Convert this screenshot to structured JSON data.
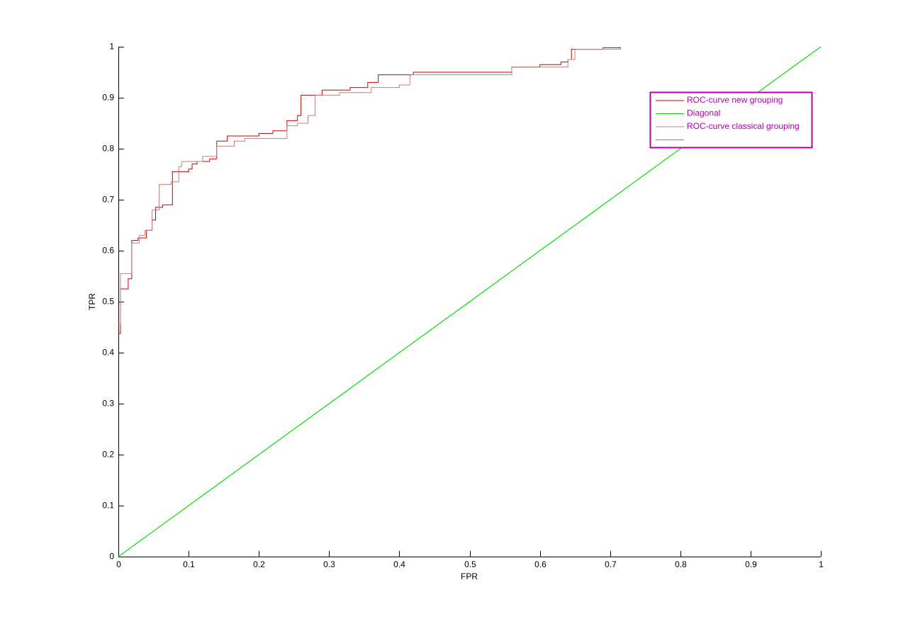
{
  "chart_data": {
    "type": "line",
    "xlabel": "FPR",
    "ylabel": "TPR",
    "xlim": [
      0,
      1
    ],
    "ylim": [
      0,
      1
    ],
    "xticks": [
      0,
      0.1,
      0.2,
      0.3,
      0.4,
      0.5,
      0.6,
      0.7,
      0.8,
      0.9,
      1
    ],
    "yticks": [
      0,
      0.1,
      0.2,
      0.3,
      0.4,
      0.5,
      0.6,
      0.7,
      0.8,
      0.9,
      1
    ],
    "legend_position": "northeast",
    "legend_color": "#b000b0",
    "series": [
      {
        "name": "ROC-curve new grouping",
        "color": "#cc0000",
        "x": [
          0,
          0.003,
          0.003,
          0.014,
          0.014,
          0.019,
          0.019,
          0.028,
          0.028,
          0.04,
          0.04,
          0.048,
          0.048,
          0.053,
          0.053,
          0.063,
          0.063,
          0.077,
          0.077,
          0.1,
          0.1,
          0.105,
          0.105,
          0.112,
          0.112,
          0.13,
          0.13,
          0.14,
          0.14,
          0.155,
          0.155,
          0.2,
          0.2,
          0.22,
          0.22,
          0.24,
          0.24,
          0.255,
          0.255,
          0.26,
          0.26,
          0.29,
          0.29,
          0.33,
          0.33,
          0.355,
          0.355,
          0.37,
          0.37,
          0.42,
          0.42,
          0.56,
          0.56,
          0.6,
          0.6,
          0.63,
          0.63,
          0.64,
          0.64,
          0.645,
          0.645,
          0.69,
          0.69,
          0.715,
          0.715
        ],
        "values": [
          0.4375,
          0.4375,
          0.525,
          0.525,
          0.545,
          0.545,
          0.62,
          0.62,
          0.625,
          0.625,
          0.64,
          0.64,
          0.66,
          0.66,
          0.685,
          0.685,
          0.69,
          0.69,
          0.755,
          0.755,
          0.76,
          0.76,
          0.77,
          0.77,
          0.775,
          0.775,
          0.78,
          0.78,
          0.815,
          0.815,
          0.825,
          0.825,
          0.83,
          0.83,
          0.835,
          0.835,
          0.855,
          0.855,
          0.865,
          0.865,
          0.905,
          0.905,
          0.915,
          0.915,
          0.92,
          0.92,
          0.93,
          0.93,
          0.945,
          0.945,
          0.95,
          0.95,
          0.96,
          0.96,
          0.965,
          0.965,
          0.97,
          0.97,
          0.975,
          0.975,
          0.995,
          0.995,
          0.998,
          0.998,
          1
        ]
      },
      {
        "name": "Diagonal",
        "color": "#00dd00",
        "x": [
          0,
          1
        ],
        "values": [
          0,
          1
        ]
      },
      {
        "name": "ROC-curve classical grouping",
        "color": "#c08080",
        "x": [
          0,
          0.003,
          0.003,
          0.019,
          0.019,
          0.03,
          0.03,
          0.038,
          0.038,
          0.048,
          0.048,
          0.058,
          0.058,
          0.075,
          0.075,
          0.086,
          0.086,
          0.09,
          0.09,
          0.12,
          0.12,
          0.14,
          0.14,
          0.165,
          0.165,
          0.18,
          0.18,
          0.24,
          0.24,
          0.255,
          0.255,
          0.27,
          0.27,
          0.28,
          0.28,
          0.315,
          0.315,
          0.36,
          0.36,
          0.4,
          0.4,
          0.415,
          0.415,
          0.56,
          0.56,
          0.64,
          0.64,
          0.65,
          0.65,
          0.715,
          0.715
        ],
        "values": [
          0.455,
          0.455,
          0.555,
          0.555,
          0.615,
          0.615,
          0.63,
          0.63,
          0.64,
          0.64,
          0.68,
          0.68,
          0.73,
          0.73,
          0.735,
          0.735,
          0.765,
          0.765,
          0.775,
          0.775,
          0.785,
          0.785,
          0.805,
          0.805,
          0.815,
          0.815,
          0.82,
          0.82,
          0.845,
          0.845,
          0.85,
          0.85,
          0.865,
          0.865,
          0.905,
          0.905,
          0.91,
          0.91,
          0.92,
          0.92,
          0.925,
          0.925,
          0.945,
          0.945,
          0.96,
          0.96,
          0.975,
          0.975,
          0.995,
          0.995,
          1
        ]
      },
      {
        "name": null,
        "color": "#00dd00",
        "x": [
          0,
          1
        ],
        "values": [
          0,
          1
        ]
      }
    ]
  }
}
